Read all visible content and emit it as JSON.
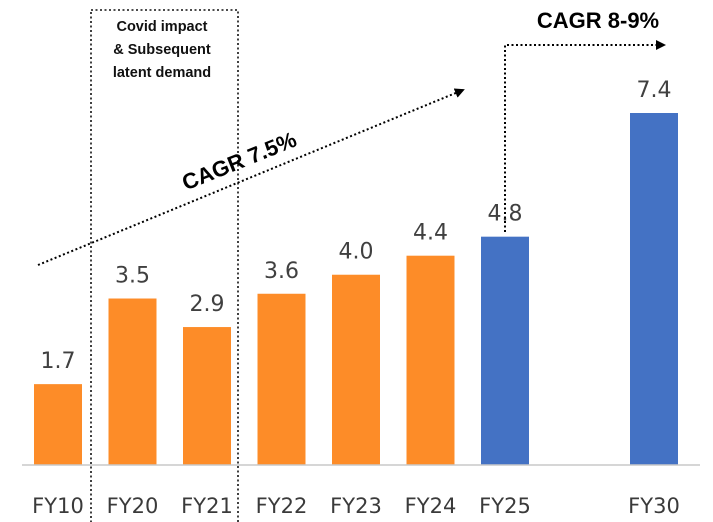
{
  "chart_data": {
    "type": "bar",
    "categories": [
      "FY10",
      "FY20",
      "FY21",
      "FY22",
      "FY23",
      "FY24",
      "FY25",
      "FY30"
    ],
    "values": [
      1.7,
      3.5,
      2.9,
      3.6,
      4.0,
      4.4,
      4.8,
      7.4
    ],
    "value_labels": [
      "1.7",
      "3.5",
      "2.9",
      "3.6",
      "4.0",
      "4.4",
      "4.8",
      "7.4"
    ],
    "colors": [
      "#fd8c28",
      "#fd8c28",
      "#fd8c28",
      "#fd8c28",
      "#fd8c28",
      "#fd8c28",
      "#4472c4",
      "#4472c4"
    ],
    "annotations": {
      "covid_note": [
        "Covid impact",
        "& Subsequent",
        "latent demand"
      ],
      "cagr_past": "CAGR 7.5%",
      "cagr_future": "CAGR 8-9%"
    }
  }
}
